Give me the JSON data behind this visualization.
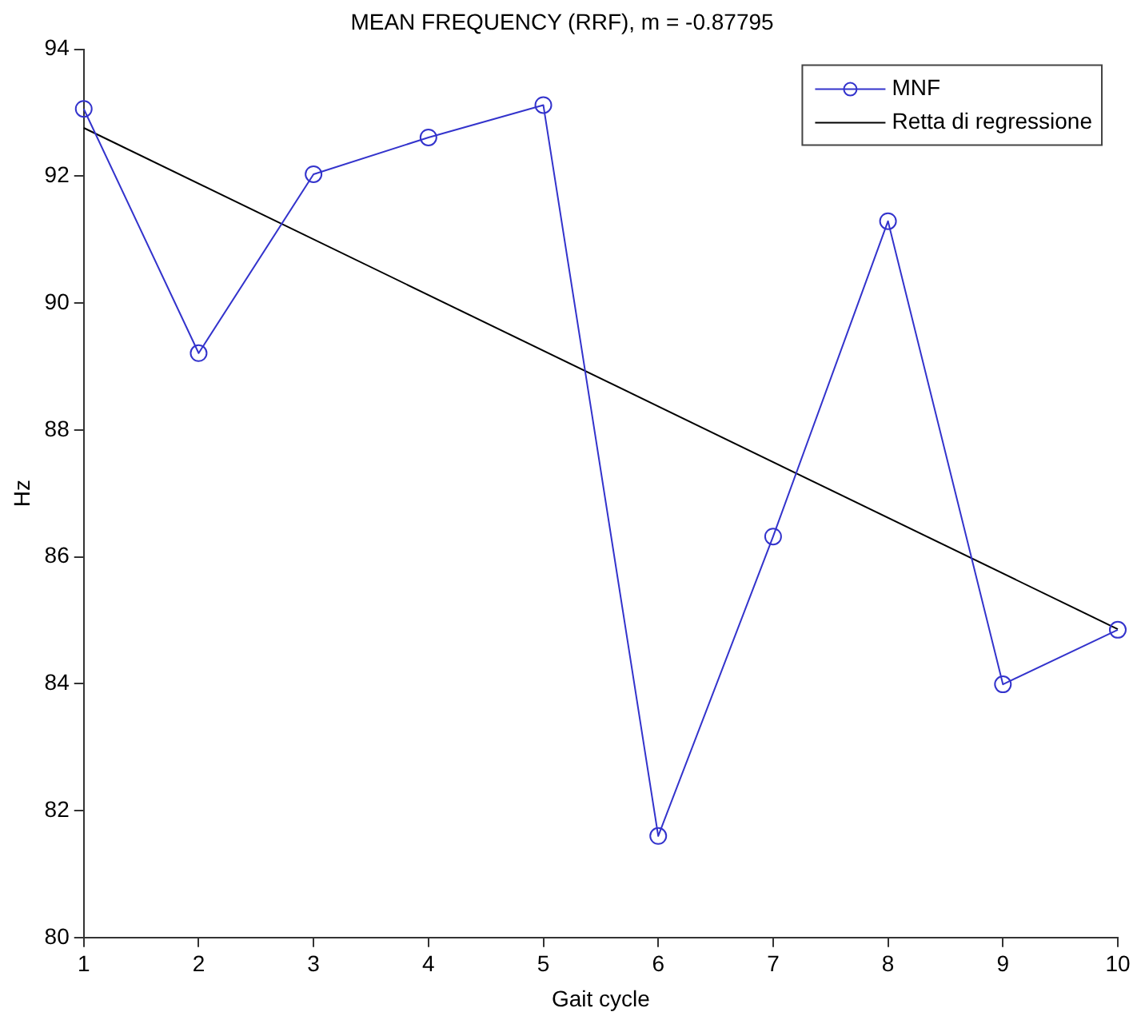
{
  "chart_data": {
    "type": "line",
    "title": "MEAN FREQUENCY (RRF), m = -0.87795",
    "xlabel": "Gait cycle",
    "ylabel": "Hz",
    "x": [
      1,
      2,
      3,
      4,
      5,
      6,
      7,
      8,
      9,
      10
    ],
    "series": [
      {
        "name": "MNF",
        "color": "#3333cc",
        "marker": "circle",
        "values": [
          93.06,
          89.21,
          92.03,
          92.61,
          93.12,
          81.6,
          86.32,
          91.29,
          83.99,
          84.85
        ]
      },
      {
        "name": "Retta di regressione",
        "color": "#000000",
        "marker": "none",
        "x": [
          1,
          10
        ],
        "values": [
          92.76,
          84.86
        ]
      }
    ],
    "xlim": [
      1,
      10
    ],
    "xticks": [
      1,
      2,
      3,
      4,
      5,
      6,
      7,
      8,
      9,
      10
    ],
    "ylim": [
      80,
      94
    ],
    "yticks": [
      80,
      82,
      84,
      86,
      88,
      90,
      92,
      94
    ],
    "grid": false,
    "legend": "top right",
    "line_style": "solid"
  }
}
